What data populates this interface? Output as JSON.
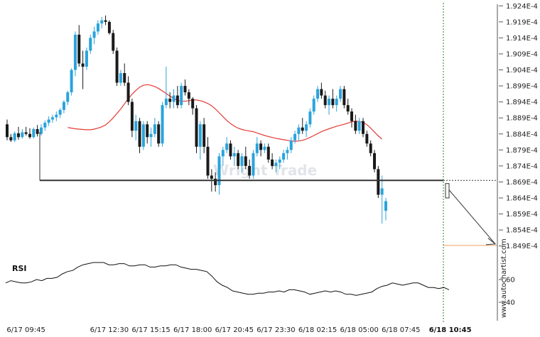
{
  "colors": {
    "bull": "#2aa3dc",
    "bear": "#1a1a1a",
    "ma": "#e53935",
    "level": "#333333",
    "target": "#f0a060",
    "rsi": "#111111",
    "grid": "#d8d8d8",
    "cursor": "#2e7d32"
  },
  "watermark": "Wright Trade",
  "source": "www.autochartist.com",
  "chart_data": {
    "type": "candlestick",
    "ylim": [
      1.8465,
      1.9245
    ],
    "y_ticks": [
      1.924,
      1.919,
      1.914,
      1.909,
      1.904,
      1.899,
      1.894,
      1.889,
      1.884,
      1.879,
      1.874,
      1.869,
      1.864,
      1.859,
      1.854,
      1.849
    ],
    "y_tick_labels": [
      "1.924E-4",
      "1.919E-4",
      "1.914E-4",
      "1.909E-4",
      "1.904E-4",
      "1.899E-4",
      "1.894E-4",
      "1.889E-4",
      "1.884E-4",
      "1.879E-4",
      "1.874E-4",
      "1.869E-4",
      "1.864E-4",
      "1.859E-4",
      "1.854E-4",
      "1.849E-4"
    ],
    "x_tick_labels": [
      "6/17 09:45",
      "6/17 12:30",
      "6/17 15:15",
      "6/17 18:00",
      "6/17 20:45",
      "6/17 23:30",
      "6/18 02:15",
      "6/18 05:00",
      "6/18 07:45",
      "6/18 10:45"
    ],
    "x_tick_index": [
      5,
      27,
      38,
      49,
      60,
      71,
      82,
      93,
      104,
      117
    ],
    "support_level": 1.8695,
    "target_level": 1.8492,
    "candles": [
      [
        1.887,
        1.8885,
        1.882,
        1.883
      ],
      [
        1.883,
        1.884,
        1.8815,
        1.882
      ],
      [
        1.882,
        1.8848,
        1.8815,
        1.8842
      ],
      [
        1.8842,
        1.8862,
        1.8822,
        1.883
      ],
      [
        1.883,
        1.8855,
        1.8825,
        1.8845
      ],
      [
        1.8845,
        1.8862,
        1.8835,
        1.884
      ],
      [
        1.884,
        1.8858,
        1.8825,
        1.883
      ],
      [
        1.883,
        1.886,
        1.8826,
        1.8855
      ],
      [
        1.8855,
        1.8868,
        1.8832,
        1.884
      ],
      [
        1.884,
        1.887,
        1.8835,
        1.886
      ],
      [
        1.886,
        1.8882,
        1.885,
        1.8875
      ],
      [
        1.8875,
        1.8895,
        1.8865,
        1.8885
      ],
      [
        1.8885,
        1.89,
        1.8875,
        1.8892
      ],
      [
        1.8892,
        1.891,
        1.888,
        1.89
      ],
      [
        1.89,
        1.892,
        1.889,
        1.8915
      ],
      [
        1.8915,
        1.8945,
        1.8905,
        1.894
      ],
      [
        1.894,
        1.8975,
        1.893,
        1.897
      ],
      [
        1.897,
        1.9045,
        1.896,
        1.904
      ],
      [
        1.904,
        1.916,
        1.902,
        1.915
      ],
      [
        1.915,
        1.918,
        1.905,
        1.906
      ],
      [
        1.906,
        1.91,
        1.898,
        1.905
      ],
      [
        1.905,
        1.911,
        1.904,
        1.91
      ],
      [
        1.91,
        1.915,
        1.909,
        1.914
      ],
      [
        1.914,
        1.9175,
        1.912,
        1.916
      ],
      [
        1.916,
        1.9195,
        1.915,
        1.9185
      ],
      [
        1.9185,
        1.9205,
        1.917,
        1.9195
      ],
      [
        1.9195,
        1.921,
        1.918,
        1.919
      ],
      [
        1.919,
        1.9195,
        1.915,
        1.9155
      ],
      [
        1.9155,
        1.9165,
        1.909,
        1.91
      ],
      [
        1.91,
        1.911,
        1.899,
        1.9
      ],
      [
        1.9,
        1.904,
        1.899,
        1.903
      ],
      [
        1.903,
        1.906,
        1.899,
        1.9
      ],
      [
        1.9,
        1.902,
        1.893,
        1.894
      ],
      [
        1.894,
        1.895,
        1.883,
        1.885
      ],
      [
        1.885,
        1.89,
        1.882,
        1.888
      ],
      [
        1.888,
        1.889,
        1.878,
        1.88
      ],
      [
        1.88,
        1.888,
        1.879,
        1.887
      ],
      [
        1.887,
        1.888,
        1.881,
        1.883
      ],
      [
        1.883,
        1.886,
        1.88,
        1.884
      ],
      [
        1.884,
        1.889,
        1.883,
        1.887
      ],
      [
        1.887,
        1.888,
        1.88,
        1.881
      ],
      [
        1.881,
        1.894,
        1.88,
        1.893
      ],
      [
        1.893,
        1.905,
        1.892,
        1.895
      ],
      [
        1.895,
        1.897,
        1.892,
        1.894
      ],
      [
        1.894,
        1.898,
        1.892,
        1.896
      ],
      [
        1.896,
        1.899,
        1.892,
        1.893
      ],
      [
        1.893,
        1.9,
        1.892,
        1.899
      ],
      [
        1.899,
        1.901,
        1.896,
        1.897
      ],
      [
        1.897,
        1.898,
        1.893,
        1.895
      ],
      [
        1.895,
        1.8955,
        1.89,
        1.892
      ],
      [
        1.892,
        1.893,
        1.878,
        1.88
      ],
      [
        1.88,
        1.888,
        1.876,
        1.887
      ],
      [
        1.887,
        1.889,
        1.878,
        1.88
      ],
      [
        1.88,
        1.883,
        1.87,
        1.871
      ],
      [
        1.871,
        1.873,
        1.866,
        1.87
      ],
      [
        1.87,
        1.872,
        1.866,
        1.868
      ],
      [
        1.868,
        1.878,
        1.865,
        1.877
      ],
      [
        1.877,
        1.88,
        1.874,
        1.879
      ],
      [
        1.879,
        1.883,
        1.878,
        1.881
      ],
      [
        1.881,
        1.882,
        1.876,
        1.877
      ],
      [
        1.877,
        1.88,
        1.874,
        1.878
      ],
      [
        1.878,
        1.879,
        1.873,
        1.874
      ],
      [
        1.874,
        1.878,
        1.872,
        1.877
      ],
      [
        1.877,
        1.88,
        1.873,
        1.874
      ],
      [
        1.874,
        1.876,
        1.87,
        1.871
      ],
      [
        1.871,
        1.879,
        1.87,
        1.878
      ],
      [
        1.878,
        1.883,
        1.877,
        1.881
      ],
      [
        1.881,
        1.882,
        1.877,
        1.879
      ],
      [
        1.879,
        1.881,
        1.878,
        1.88
      ],
      [
        1.88,
        1.881,
        1.875,
        1.876
      ],
      [
        1.876,
        1.878,
        1.873,
        1.874
      ],
      [
        1.874,
        1.876,
        1.872,
        1.875
      ],
      [
        1.875,
        1.877,
        1.873,
        1.876
      ],
      [
        1.876,
        1.879,
        1.875,
        1.878
      ],
      [
        1.878,
        1.88,
        1.876,
        1.879
      ],
      [
        1.879,
        1.883,
        1.878,
        1.882
      ],
      [
        1.882,
        1.885,
        1.881,
        1.884
      ],
      [
        1.884,
        1.887,
        1.882,
        1.886
      ],
      [
        1.886,
        1.889,
        1.884,
        1.885
      ],
      [
        1.885,
        1.888,
        1.883,
        1.887
      ],
      [
        1.887,
        1.892,
        1.886,
        1.891
      ],
      [
        1.891,
        1.896,
        1.89,
        1.895
      ],
      [
        1.895,
        1.899,
        1.894,
        1.898
      ],
      [
        1.898,
        1.9,
        1.895,
        1.896
      ],
      [
        1.896,
        1.8975,
        1.892,
        1.893
      ],
      [
        1.893,
        1.896,
        1.89,
        1.895
      ],
      [
        1.895,
        1.898,
        1.892,
        1.893
      ],
      [
        1.893,
        1.896,
        1.891,
        1.895
      ],
      [
        1.895,
        1.899,
        1.894,
        1.898
      ],
      [
        1.898,
        1.899,
        1.892,
        1.893
      ],
      [
        1.893,
        1.895,
        1.89,
        1.891
      ],
      [
        1.891,
        1.892,
        1.886,
        1.888
      ],
      [
        1.888,
        1.89,
        1.884,
        1.885
      ],
      [
        1.885,
        1.889,
        1.884,
        1.888
      ],
      [
        1.888,
        1.889,
        1.883,
        1.884
      ],
      [
        1.884,
        1.885,
        1.88,
        1.881
      ],
      [
        1.881,
        1.882,
        1.877,
        1.878
      ],
      [
        1.878,
        1.879,
        1.872,
        1.873
      ],
      [
        1.873,
        1.874,
        1.864,
        1.865
      ],
      [
        1.865,
        1.871,
        1.856,
        1.867
      ],
      [
        1.86,
        1.864,
        1.857,
        1.863
      ]
    ],
    "ma": [
      1.886,
      1.8858,
      1.8856,
      1.8855,
      1.8854,
      1.8853,
      1.8853,
      1.8855,
      1.8858,
      1.8862,
      1.8868,
      1.8878,
      1.889,
      1.8904,
      1.8918,
      1.8934,
      1.895,
      1.8964,
      1.8976,
      1.8986,
      1.8992,
      1.8994,
      1.8992,
      1.8988,
      1.8982,
      1.8974,
      1.8966,
      1.8958,
      1.8951,
      1.8945,
      1.8942,
      1.8942,
      1.8944,
      1.8946,
      1.8946,
      1.8944,
      1.894,
      1.8935,
      1.8928,
      1.8918,
      1.8906,
      1.8894,
      1.8882,
      1.8872,
      1.8864,
      1.8858,
      1.8854,
      1.8851,
      1.8849,
      1.8847,
      1.8843,
      1.8839,
      1.8835,
      1.8832,
      1.8829,
      1.8826,
      1.8824,
      1.8822,
      1.882,
      1.8818,
      1.8817,
      1.8818,
      1.882,
      1.8824,
      1.8829,
      1.8835,
      1.8841,
      1.8847,
      1.8852,
      1.8856,
      1.886,
      1.8864,
      1.8867,
      1.887,
      1.8874,
      1.8878,
      1.888,
      1.8879,
      1.8876,
      1.8869,
      1.8858,
      1.8846,
      1.8834,
      1.8824
    ],
    "rsi": [
      57,
      59,
      58,
      57,
      57,
      58,
      60,
      59,
      61,
      61,
      62,
      65,
      67,
      68,
      71,
      73,
      74,
      75,
      75,
      75,
      73,
      73,
      74,
      74,
      72,
      72,
      73,
      73,
      71,
      71,
      72,
      72,
      73,
      73,
      71,
      70,
      69,
      69,
      68,
      67,
      63,
      58,
      55,
      53,
      50,
      49,
      48,
      47,
      47,
      48,
      48,
      49,
      49,
      50,
      49,
      51,
      51,
      50,
      49,
      47,
      48,
      49,
      50,
      49,
      50,
      49,
      47,
      47,
      46,
      47,
      48,
      49,
      52,
      54,
      55,
      57,
      56,
      55,
      56,
      57,
      57,
      55,
      53,
      53,
      52,
      53,
      51
    ]
  }
}
